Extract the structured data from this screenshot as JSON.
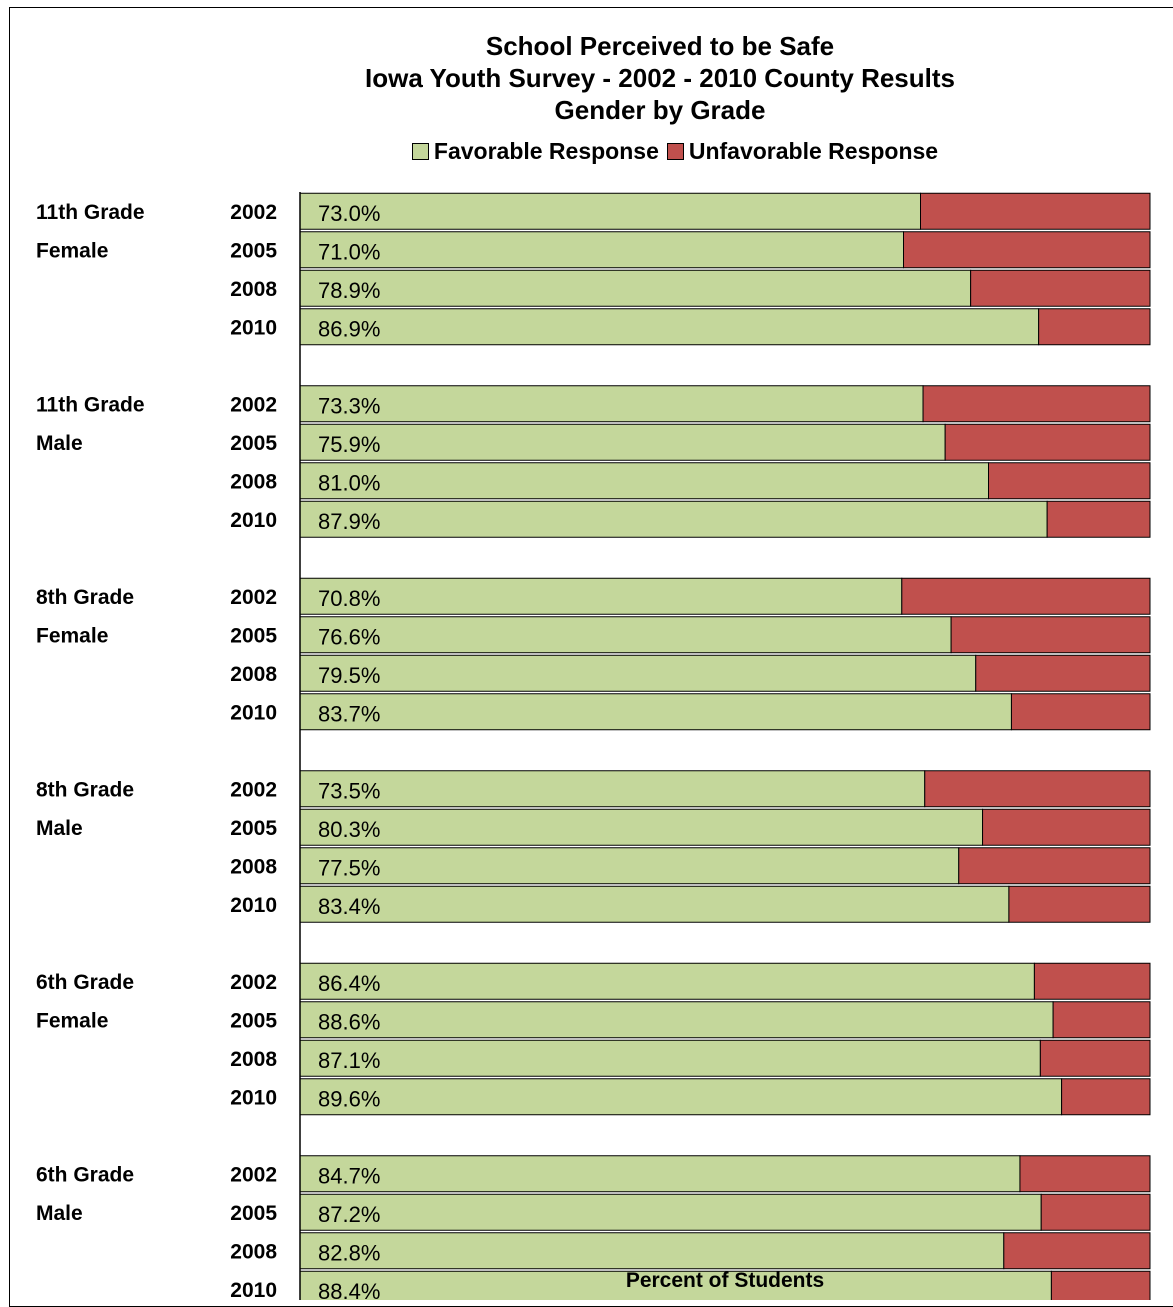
{
  "chart_data": {
    "type": "bar",
    "stacked": true,
    "orientation": "horizontal",
    "title_lines": [
      "School Perceived to be Safe",
      "Iowa Youth Survey - 2002 - 2010 County Results",
      "Gender by Grade"
    ],
    "xlabel": "Percent of Students",
    "xlim": [
      0,
      100
    ],
    "x_ticks": [
      "0%",
      "20%",
      "40%",
      "60%",
      "80%",
      "100%"
    ],
    "legend_position": "top-center",
    "series": [
      {
        "name": "Favorable Response",
        "color": "#c4d79b"
      },
      {
        "name": "Unfavorable Response",
        "color": "#c0504d"
      }
    ],
    "groups": [
      {
        "label_line1": "11th Grade",
        "label_line2": "Female",
        "rows": [
          {
            "year": "2002",
            "favorable": 73.0,
            "unfavorable": 27.0,
            "fav_label": "73.0%",
            "unfav_label": "27.0%"
          },
          {
            "year": "2005",
            "favorable": 71.0,
            "unfavorable": 29.0,
            "fav_label": "71.0%",
            "unfav_label": "29.0%"
          },
          {
            "year": "2008",
            "favorable": 78.9,
            "unfavorable": 21.1,
            "fav_label": "78.9%",
            "unfav_label": "21.1%"
          },
          {
            "year": "2010",
            "favorable": 86.9,
            "unfavorable": 13.1,
            "fav_label": "86.9%",
            "unfav_label": "13.1%"
          }
        ]
      },
      {
        "label_line1": "11th Grade",
        "label_line2": "Male",
        "rows": [
          {
            "year": "2002",
            "favorable": 73.3,
            "unfavorable": 26.7,
            "fav_label": "73.3%",
            "unfav_label": "26.7%"
          },
          {
            "year": "2005",
            "favorable": 75.9,
            "unfavorable": 24.1,
            "fav_label": "75.9%",
            "unfav_label": "24.1%"
          },
          {
            "year": "2008",
            "favorable": 81.0,
            "unfavorable": 19.0,
            "fav_label": "81.0%",
            "unfav_label": "19.0%"
          },
          {
            "year": "2010",
            "favorable": 87.9,
            "unfavorable": 12.1,
            "fav_label": "87.9%",
            "unfav_label": "12.1%"
          }
        ]
      },
      {
        "label_line1": "8th Grade",
        "label_line2": "Female",
        "rows": [
          {
            "year": "2002",
            "favorable": 70.8,
            "unfavorable": 29.2,
            "fav_label": "70.8%",
            "unfav_label": "29.2%"
          },
          {
            "year": "2005",
            "favorable": 76.6,
            "unfavorable": 23.4,
            "fav_label": "76.6%",
            "unfav_label": "23.4%"
          },
          {
            "year": "2008",
            "favorable": 79.5,
            "unfavorable": 20.5,
            "fav_label": "79.5%",
            "unfav_label": "20.5%"
          },
          {
            "year": "2010",
            "favorable": 83.7,
            "unfavorable": 16.3,
            "fav_label": "83.7%",
            "unfav_label": "16.3%"
          }
        ]
      },
      {
        "label_line1": "8th Grade",
        "label_line2": "Male",
        "rows": [
          {
            "year": "2002",
            "favorable": 73.5,
            "unfavorable": 26.5,
            "fav_label": "73.5%",
            "unfav_label": "26.5%"
          },
          {
            "year": "2005",
            "favorable": 80.3,
            "unfavorable": 19.7,
            "fav_label": "80.3%",
            "unfav_label": "19.7%"
          },
          {
            "year": "2008",
            "favorable": 77.5,
            "unfavorable": 22.5,
            "fav_label": "77.5%",
            "unfav_label": "22.5%"
          },
          {
            "year": "2010",
            "favorable": 83.4,
            "unfavorable": 16.6,
            "fav_label": "83.4%",
            "unfav_label": "16.6%"
          }
        ]
      },
      {
        "label_line1": "6th Grade",
        "label_line2": "Female",
        "rows": [
          {
            "year": "2002",
            "favorable": 86.4,
            "unfavorable": 13.6,
            "fav_label": "86.4%",
            "unfav_label": "13.6%"
          },
          {
            "year": "2005",
            "favorable": 88.6,
            "unfavorable": 11.4,
            "fav_label": "88.6%",
            "unfav_label": "11.4%"
          },
          {
            "year": "2008",
            "favorable": 87.1,
            "unfavorable": 12.9,
            "fav_label": "87.1%",
            "unfav_label": "12.9%"
          },
          {
            "year": "2010",
            "favorable": 89.6,
            "unfavorable": 10.4,
            "fav_label": "89.6%",
            "unfav_label": "10.4%"
          }
        ]
      },
      {
        "label_line1": "6th Grade",
        "label_line2": "Male",
        "rows": [
          {
            "year": "2002",
            "favorable": 84.7,
            "unfavorable": 15.3,
            "fav_label": "84.7%",
            "unfav_label": "15.3%"
          },
          {
            "year": "2005",
            "favorable": 87.2,
            "unfavorable": 12.8,
            "fav_label": "87.2%",
            "unfav_label": "12.8%"
          },
          {
            "year": "2008",
            "favorable": 82.8,
            "unfavorable": 17.2,
            "fav_label": "82.8%",
            "unfav_label": "17.2%"
          },
          {
            "year": "2010",
            "favorable": 88.4,
            "unfavorable": 11.6,
            "fav_label": "88.4%",
            "unfav_label": "11.6%"
          }
        ]
      }
    ]
  }
}
